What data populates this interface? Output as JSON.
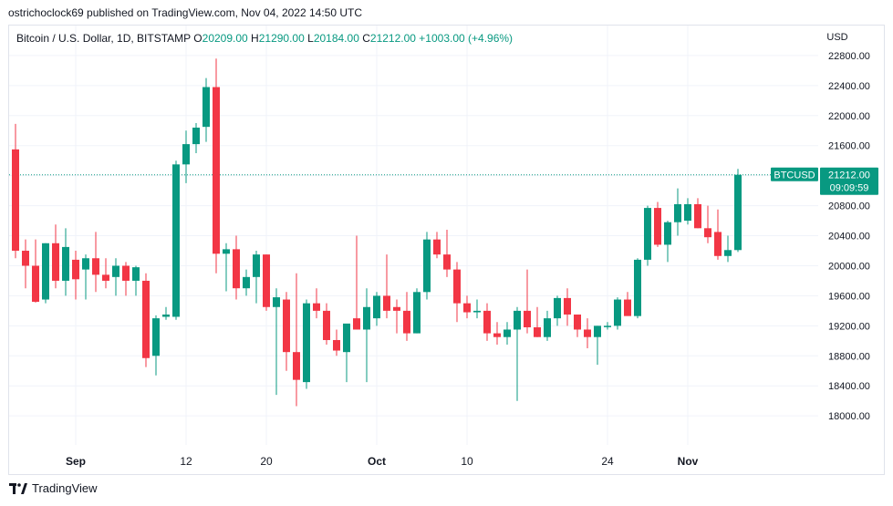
{
  "header": {
    "published": "ostrichoclock69 published on TradingView.com, Nov 04, 2022 14:50 UTC"
  },
  "legend": {
    "symbol": "Bitcoin / U.S. Dollar, 1D, BITSTAMP",
    "o_label": "O",
    "o_value": "20209.00",
    "h_label": "H",
    "h_value": "21290.00",
    "l_label": "L",
    "l_value": "20184.00",
    "c_label": "C",
    "c_value": "21212.00",
    "change": "+1003.00 (+4.96%)"
  },
  "footer": {
    "brand": "TradingView",
    "logo_icon": "tradingview-logo-icon"
  },
  "colors": {
    "up": "#089981",
    "down": "#f23645",
    "grid": "#f0f3fa",
    "text": "#131722"
  },
  "chart_data": {
    "type": "candlestick",
    "currency": "USD",
    "ylim": [
      17600,
      23200
    ],
    "y_ticks": [
      "22800.00",
      "22400.00",
      "22000.00",
      "21600.00",
      "21200.00",
      "20800.00",
      "20400.00",
      "20000.00",
      "19600.00",
      "19200.00",
      "18800.00",
      "18400.00",
      "18000.00"
    ],
    "x_ticks": [
      {
        "label": "Sep",
        "index": 6
      },
      {
        "label": "12",
        "index": 17
      },
      {
        "label": "20",
        "index": 25
      },
      {
        "label": "Oct",
        "index": 36
      },
      {
        "label": "10",
        "index": 45
      },
      {
        "label": "24",
        "index": 59
      },
      {
        "label": "Nov",
        "index": 67
      }
    ],
    "last_price": {
      "label": "BTCUSD",
      "value": "21212.00",
      "countdown": "09:09:59",
      "price": 21212
    },
    "candles": [
      {
        "o": 21550,
        "h": 21890,
        "l": 20100,
        "c": 20200
      },
      {
        "o": 20200,
        "h": 20350,
        "l": 19700,
        "c": 20000
      },
      {
        "o": 20000,
        "h": 20350,
        "l": 19510,
        "c": 19520
      },
      {
        "o": 19550,
        "h": 20300,
        "l": 19500,
        "c": 20300
      },
      {
        "o": 20300,
        "h": 20550,
        "l": 19700,
        "c": 19800
      },
      {
        "o": 19800,
        "h": 20500,
        "l": 19600,
        "c": 20250
      },
      {
        "o": 20080,
        "h": 20200,
        "l": 19550,
        "c": 19820
      },
      {
        "o": 19950,
        "h": 20150,
        "l": 19550,
        "c": 20100
      },
      {
        "o": 20100,
        "h": 20450,
        "l": 19650,
        "c": 19880
      },
      {
        "o": 19880,
        "h": 20100,
        "l": 19700,
        "c": 19800
      },
      {
        "o": 19850,
        "h": 20100,
        "l": 19600,
        "c": 20000
      },
      {
        "o": 20000,
        "h": 20050,
        "l": 19600,
        "c": 19800
      },
      {
        "o": 19800,
        "h": 20000,
        "l": 19600,
        "c": 19980
      },
      {
        "o": 19800,
        "h": 19900,
        "l": 18650,
        "c": 18770
      },
      {
        "o": 18800,
        "h": 19340,
        "l": 18540,
        "c": 19300
      },
      {
        "o": 19320,
        "h": 19450,
        "l": 19280,
        "c": 19350
      },
      {
        "o": 19320,
        "h": 21400,
        "l": 19280,
        "c": 21350
      },
      {
        "o": 21350,
        "h": 21800,
        "l": 21100,
        "c": 21620
      },
      {
        "o": 21620,
        "h": 21900,
        "l": 21500,
        "c": 21840
      },
      {
        "o": 21850,
        "h": 22500,
        "l": 21650,
        "c": 22380
      },
      {
        "o": 22380,
        "h": 22760,
        "l": 19900,
        "c": 20160
      },
      {
        "o": 20160,
        "h": 20300,
        "l": 19660,
        "c": 20220
      },
      {
        "o": 20220,
        "h": 20400,
        "l": 19550,
        "c": 19700
      },
      {
        "o": 19700,
        "h": 19950,
        "l": 19600,
        "c": 19850
      },
      {
        "o": 19850,
        "h": 20200,
        "l": 19500,
        "c": 20150
      },
      {
        "o": 20150,
        "h": 20150,
        "l": 19400,
        "c": 19450
      },
      {
        "o": 19450,
        "h": 19700,
        "l": 18280,
        "c": 19580
      },
      {
        "o": 19550,
        "h": 19650,
        "l": 18600,
        "c": 18850
      },
      {
        "o": 18850,
        "h": 19900,
        "l": 18130,
        "c": 18480
      },
      {
        "o": 18450,
        "h": 19550,
        "l": 18360,
        "c": 19500
      },
      {
        "o": 19500,
        "h": 19700,
        "l": 19300,
        "c": 19400
      },
      {
        "o": 19400,
        "h": 19500,
        "l": 18950,
        "c": 19010
      },
      {
        "o": 19010,
        "h": 19150,
        "l": 18800,
        "c": 18870
      },
      {
        "o": 18850,
        "h": 19200,
        "l": 18450,
        "c": 19230
      },
      {
        "o": 19300,
        "h": 20400,
        "l": 19150,
        "c": 19150
      },
      {
        "o": 19150,
        "h": 19700,
        "l": 18450,
        "c": 19450
      },
      {
        "o": 19300,
        "h": 19650,
        "l": 19200,
        "c": 19600
      },
      {
        "o": 19600,
        "h": 20150,
        "l": 19300,
        "c": 19400
      },
      {
        "o": 19450,
        "h": 19550,
        "l": 19100,
        "c": 19400
      },
      {
        "o": 19400,
        "h": 19650,
        "l": 19000,
        "c": 19100
      },
      {
        "o": 19100,
        "h": 19700,
        "l": 19100,
        "c": 19650
      },
      {
        "o": 19650,
        "h": 20450,
        "l": 19550,
        "c": 20350
      },
      {
        "o": 20350,
        "h": 20450,
        "l": 20100,
        "c": 20150
      },
      {
        "o": 20150,
        "h": 20480,
        "l": 19850,
        "c": 19950
      },
      {
        "o": 19950,
        "h": 20050,
        "l": 19250,
        "c": 19500
      },
      {
        "o": 19500,
        "h": 19600,
        "l": 19300,
        "c": 19380
      },
      {
        "o": 19380,
        "h": 19550,
        "l": 19300,
        "c": 19400
      },
      {
        "o": 19400,
        "h": 19500,
        "l": 19000,
        "c": 19100
      },
      {
        "o": 19100,
        "h": 19250,
        "l": 18950,
        "c": 19050
      },
      {
        "o": 19050,
        "h": 19250,
        "l": 18950,
        "c": 19150
      },
      {
        "o": 19150,
        "h": 19450,
        "l": 18200,
        "c": 19400
      },
      {
        "o": 19400,
        "h": 19950,
        "l": 19100,
        "c": 19180
      },
      {
        "o": 19180,
        "h": 19450,
        "l": 19050,
        "c": 19050
      },
      {
        "o": 19050,
        "h": 19400,
        "l": 19000,
        "c": 19300
      },
      {
        "o": 19300,
        "h": 19600,
        "l": 19200,
        "c": 19570
      },
      {
        "o": 19570,
        "h": 19700,
        "l": 19200,
        "c": 19350
      },
      {
        "o": 19350,
        "h": 19350,
        "l": 19050,
        "c": 19150
      },
      {
        "o": 19150,
        "h": 19300,
        "l": 18900,
        "c": 19050
      },
      {
        "o": 19050,
        "h": 19200,
        "l": 18680,
        "c": 19200
      },
      {
        "o": 19200,
        "h": 19250,
        "l": 19150,
        "c": 19200
      },
      {
        "o": 19200,
        "h": 19580,
        "l": 19150,
        "c": 19550
      },
      {
        "o": 19550,
        "h": 19650,
        "l": 19350,
        "c": 19330
      },
      {
        "o": 19330,
        "h": 20100,
        "l": 19300,
        "c": 20080
      },
      {
        "o": 20080,
        "h": 20800,
        "l": 20000,
        "c": 20770
      },
      {
        "o": 20770,
        "h": 20850,
        "l": 20250,
        "c": 20280
      },
      {
        "o": 20280,
        "h": 20600,
        "l": 20050,
        "c": 20580
      },
      {
        "o": 20580,
        "h": 21030,
        "l": 20400,
        "c": 20820
      },
      {
        "o": 20600,
        "h": 20900,
        "l": 20550,
        "c": 20820
      },
      {
        "o": 20820,
        "h": 20900,
        "l": 20500,
        "c": 20500
      },
      {
        "o": 20500,
        "h": 20800,
        "l": 20300,
        "c": 20380
      },
      {
        "o": 20450,
        "h": 20750,
        "l": 20080,
        "c": 20130
      },
      {
        "o": 20130,
        "h": 20400,
        "l": 20050,
        "c": 20209
      },
      {
        "o": 20209,
        "h": 21290,
        "l": 20184,
        "c": 21212
      }
    ]
  }
}
